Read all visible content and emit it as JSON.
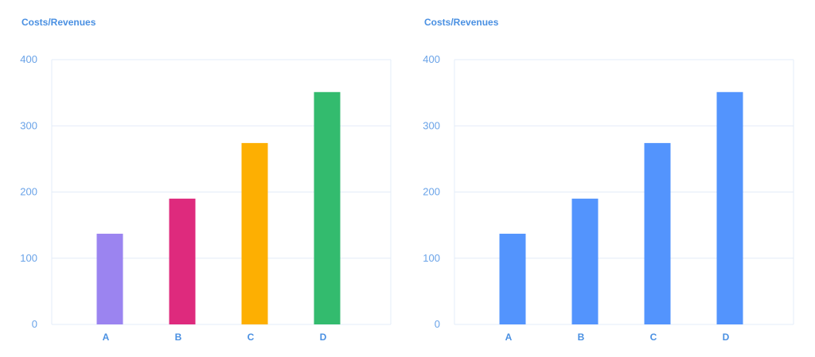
{
  "chart_data": [
    {
      "type": "bar",
      "title": "Costs/Revenues",
      "categories": [
        "A",
        "B",
        "C",
        "D"
      ],
      "values": [
        137,
        190,
        274,
        351
      ],
      "colors": [
        "#9b84f0",
        "#de2a7d",
        "#fdaf02",
        "#33bb6e"
      ],
      "ylim": [
        0,
        400
      ],
      "yticks": [
        0,
        100,
        200,
        300,
        400
      ],
      "grid": true
    },
    {
      "type": "bar",
      "title": "Costs/Revenues",
      "categories": [
        "A",
        "B",
        "C",
        "D"
      ],
      "values": [
        137,
        190,
        274,
        351
      ],
      "colors": [
        "#5394fd",
        "#5394fd",
        "#5394fd",
        "#5394fd"
      ],
      "ylim": [
        0,
        400
      ],
      "yticks": [
        0,
        100,
        200,
        300,
        400
      ],
      "grid": true
    }
  ],
  "style": {
    "title_color": "#4a90e2",
    "tick_color": "#6aa3e8",
    "grid_color": "#e3ecf8"
  }
}
